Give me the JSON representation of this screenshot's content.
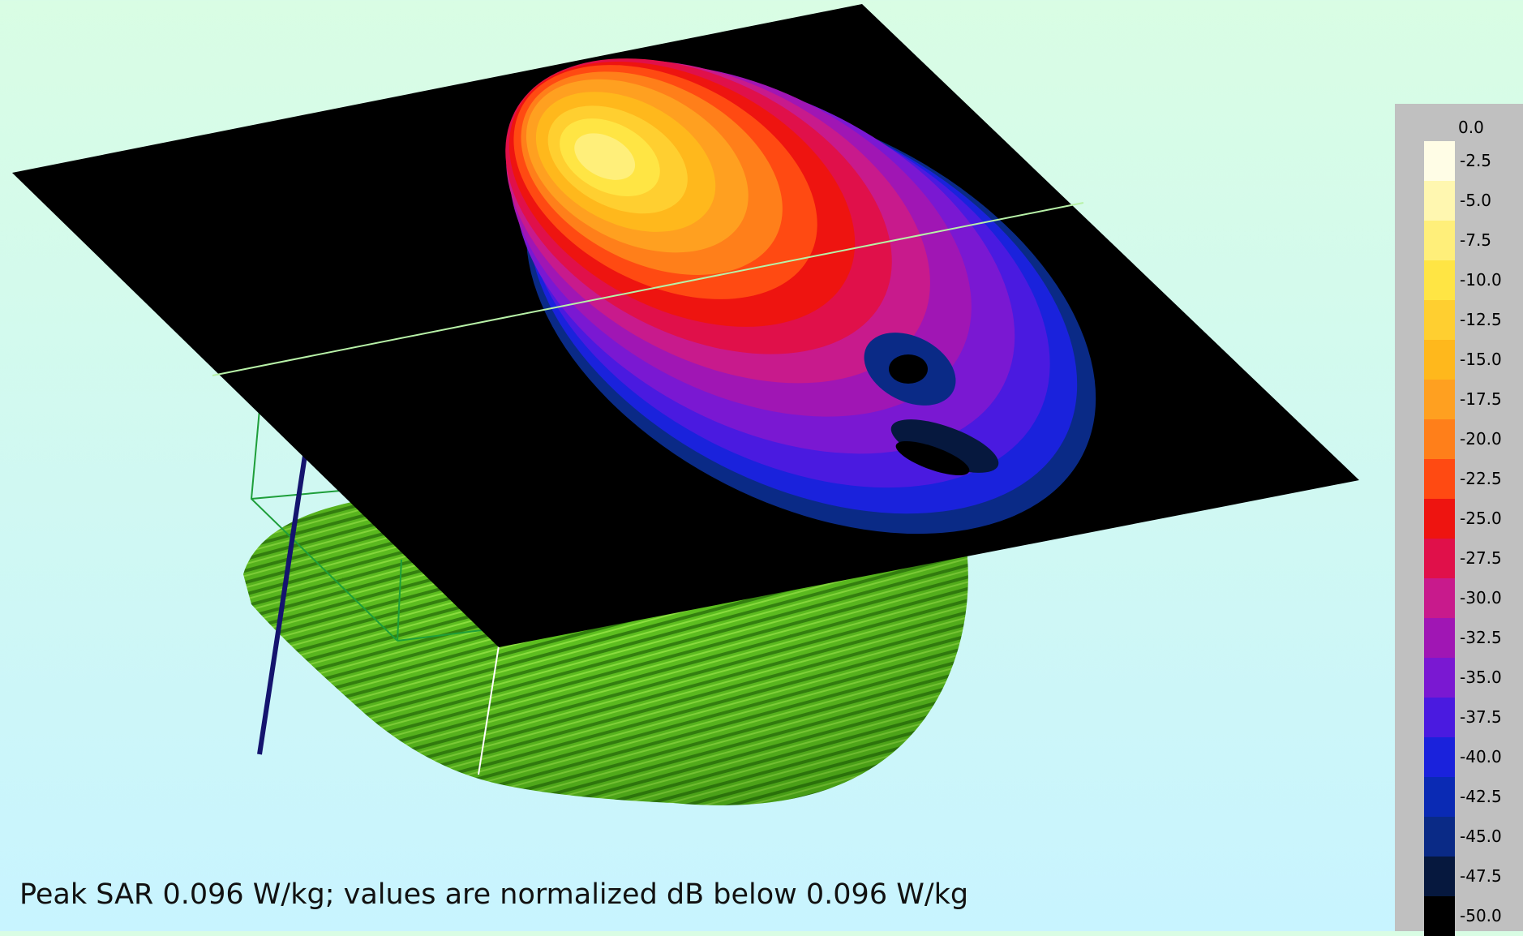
{
  "caption": "Peak SAR 0.096 W/kg; values are normalized dB below 0.096 W/kg",
  "legend": {
    "top_label": "0.0",
    "levels": [
      {
        "label": "-2.5",
        "color": "#fffde6"
      },
      {
        "label": "-5.0",
        "color": "#fff7b0"
      },
      {
        "label": "-7.5",
        "color": "#ffef7a"
      },
      {
        "label": "-10.0",
        "color": "#ffe544"
      },
      {
        "label": "-12.5",
        "color": "#ffcf30"
      },
      {
        "label": "-15.0",
        "color": "#ffb81c"
      },
      {
        "label": "-17.5",
        "color": "#ffa020"
      },
      {
        "label": "-20.0",
        "color": "#ff7f1a"
      },
      {
        "label": "-22.5",
        "color": "#ff4a12"
      },
      {
        "label": "-25.0",
        "color": "#ee1410"
      },
      {
        "label": "-27.5",
        "color": "#e0104a"
      },
      {
        "label": "-30.0",
        "color": "#c81a8c"
      },
      {
        "label": "-32.5",
        "color": "#a016b4"
      },
      {
        "label": "-35.0",
        "color": "#7a18d2"
      },
      {
        "label": "-37.5",
        "color": "#4a1ae0"
      },
      {
        "label": "-40.0",
        "color": "#1a22dc"
      },
      {
        "label": "-42.5",
        "color": "#0a2ab4"
      },
      {
        "label": "-45.0",
        "color": "#0a2a86"
      },
      {
        "label": "-47.5",
        "color": "#06183e"
      },
      {
        "label": "-50.0",
        "color": "#000000"
      }
    ]
  }
}
